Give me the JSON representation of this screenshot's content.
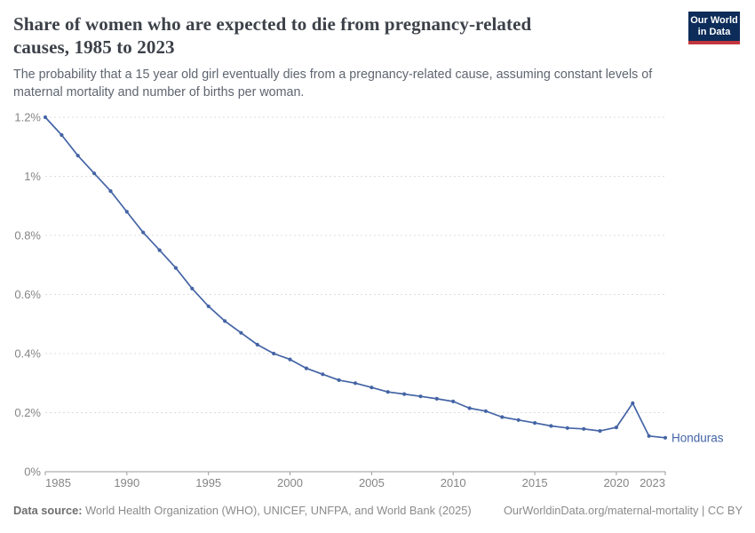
{
  "header": {
    "title": "Share of women who are expected to die from pregnancy-related causes, 1985 to 2023",
    "title_lines": [
      "Share of women who are expected to die from pregnancy-related",
      "causes, 1985 to 2023"
    ],
    "subtitle": "The probability that a 15 year old girl eventually dies from a pregnancy-related cause, assuming constant levels of maternal mortality and number of births per woman.",
    "subtitle_lines": [
      "The probability that a 15 year old girl eventually dies from a pregnancy-related cause, assuming constant levels of",
      "maternal mortality and number of births per woman."
    ]
  },
  "logo": {
    "line1": "Our World",
    "line2": "in Data"
  },
  "chart_data": {
    "type": "line",
    "title": "Share of women who are expected to die from pregnancy-related causes, 1985 to 2023",
    "xlabel": "",
    "ylabel": "",
    "y_unit": "%",
    "ylim": [
      0,
      1.2
    ],
    "grid": true,
    "legend_position": "end-of-line-label",
    "x": [
      1985,
      1986,
      1987,
      1988,
      1989,
      1990,
      1991,
      1992,
      1993,
      1994,
      1995,
      1996,
      1997,
      1998,
      1999,
      2000,
      2001,
      2002,
      2003,
      2004,
      2005,
      2006,
      2007,
      2008,
      2009,
      2010,
      2011,
      2012,
      2013,
      2014,
      2015,
      2016,
      2017,
      2018,
      2019,
      2020,
      2021,
      2022,
      2023
    ],
    "series": [
      {
        "name": "Honduras",
        "color": "#4464a5",
        "values": [
          1.2,
          1.14,
          1.07,
          1.01,
          0.95,
          0.88,
          0.81,
          0.75,
          0.69,
          0.62,
          0.56,
          0.51,
          0.47,
          0.43,
          0.4,
          0.38,
          0.35,
          0.33,
          0.31,
          0.3,
          0.285,
          0.27,
          0.263,
          0.255,
          0.247,
          0.238,
          0.215,
          0.205,
          0.185,
          0.175,
          0.165,
          0.155,
          0.148,
          0.145,
          0.138,
          0.15,
          0.232,
          0.121,
          0.115
        ]
      }
    ],
    "y_ticks": [
      {
        "value": 0,
        "label": "0%"
      },
      {
        "value": 0.2,
        "label": "0.2%"
      },
      {
        "value": 0.4,
        "label": "0.4%"
      },
      {
        "value": 0.6,
        "label": "0.6%"
      },
      {
        "value": 0.8,
        "label": "0.8%"
      },
      {
        "value": 1,
        "label": "1%"
      },
      {
        "value": 1.2,
        "label": "1.2%"
      }
    ],
    "x_ticks": [
      {
        "value": 1985,
        "label": "1985"
      },
      {
        "value": 1990,
        "label": "1990"
      },
      {
        "value": 1995,
        "label": "1995"
      },
      {
        "value": 2000,
        "label": "2000"
      },
      {
        "value": 2005,
        "label": "2005"
      },
      {
        "value": 2010,
        "label": "2010"
      },
      {
        "value": 2015,
        "label": "2015"
      },
      {
        "value": 2020,
        "label": "2020"
      },
      {
        "value": 2023,
        "label": "2023"
      }
    ]
  },
  "footer": {
    "source_label": "Data source:",
    "source_text": " World Health Organization (WHO), UNICEF, UNFPA, and World Bank (2025)",
    "right_text": "OurWorldinData.org/maternal-mortality | CC BY"
  },
  "colors": {
    "line": "#4464a5",
    "grid": "#dcdcdc",
    "axis": "#9b9b9b",
    "tick_label": "#858585",
    "title": "#3c4149",
    "subtitle": "#5e6570",
    "footer": "#8b8b8b",
    "logo_navy": "#0d2c5a",
    "logo_red": "#c2363e"
  }
}
